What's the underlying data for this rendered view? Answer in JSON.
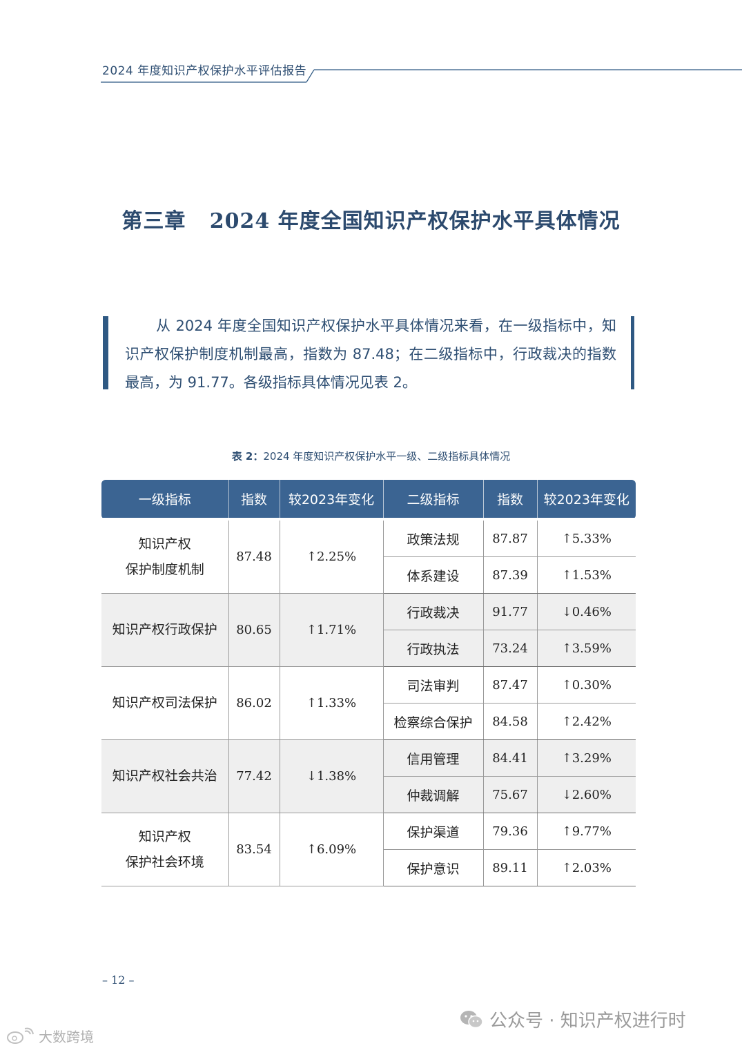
{
  "header": {
    "running_title": "2024 年度知识产权保护水平评估报告"
  },
  "chapter": {
    "title": "第三章   2024 年度全国知识产权保护水平具体情况"
  },
  "summary": {
    "text": "从 2024 年度全国知识产权保护水平具体情况来看，在一级指标中，知识产权保护制度机制最高，指数为 87.48；在二级指标中，行政裁决的指数最高，为 91.77。各级指标具体情况见表 2。"
  },
  "table": {
    "caption_label": "表 2：",
    "caption_text": "2024 年度知识产权保护水平一级、二级指标具体情况",
    "headers": [
      "一级指标",
      "指数",
      "较2023年变化",
      "二级指标",
      "指数",
      "较2023年变化"
    ],
    "groups": [
      {
        "lvl1_line1": "知识产权",
        "lvl1_line2": "保护制度机制",
        "index": "87.48",
        "change": "↑2.25%",
        "rows": [
          {
            "name": "政策法规",
            "index": "87.87",
            "change": "↑5.33%"
          },
          {
            "name": "体系建设",
            "index": "87.39",
            "change": "↑1.53%"
          }
        ]
      },
      {
        "lvl1_line1": "知识产权行政保护",
        "lvl1_line2": "",
        "index": "80.65",
        "change": "↑1.71%",
        "rows": [
          {
            "name": "行政裁决",
            "index": "91.77",
            "change": "↓0.46%"
          },
          {
            "name": "行政执法",
            "index": "73.24",
            "change": "↑3.59%"
          }
        ]
      },
      {
        "lvl1_line1": "知识产权司法保护",
        "lvl1_line2": "",
        "index": "86.02",
        "change": "↑1.33%",
        "rows": [
          {
            "name": "司法审判",
            "index": "87.47",
            "change": "↑0.30%"
          },
          {
            "name": "检察综合保护",
            "index": "84.58",
            "change": "↑2.42%"
          }
        ]
      },
      {
        "lvl1_line1": "知识产权社会共治",
        "lvl1_line2": "",
        "index": "77.42",
        "change": "↓1.38%",
        "rows": [
          {
            "name": "信用管理",
            "index": "84.41",
            "change": "↑3.29%"
          },
          {
            "name": "仲裁调解",
            "index": "75.67",
            "change": "↓2.60%"
          }
        ]
      },
      {
        "lvl1_line1": "知识产权",
        "lvl1_line2": "保护社会环境",
        "index": "83.54",
        "change": "↑6.09%",
        "rows": [
          {
            "name": "保护渠道",
            "index": "79.36",
            "change": "↑9.77%"
          },
          {
            "name": "保护意识",
            "index": "89.11",
            "change": "↑2.03%"
          }
        ]
      }
    ]
  },
  "footer": {
    "page_number": "– 12 –"
  },
  "watermark": {
    "text": "公众号 · 知识产权进行时",
    "icon": "wechat-icon",
    "logo_text": "大数跨境",
    "logo_icon": "weibo-icon"
  },
  "colors": {
    "accent": "#2f5983",
    "header_bg": "#3b6492",
    "text_blue": "#2f4f73",
    "row_shade": "#efefef"
  }
}
